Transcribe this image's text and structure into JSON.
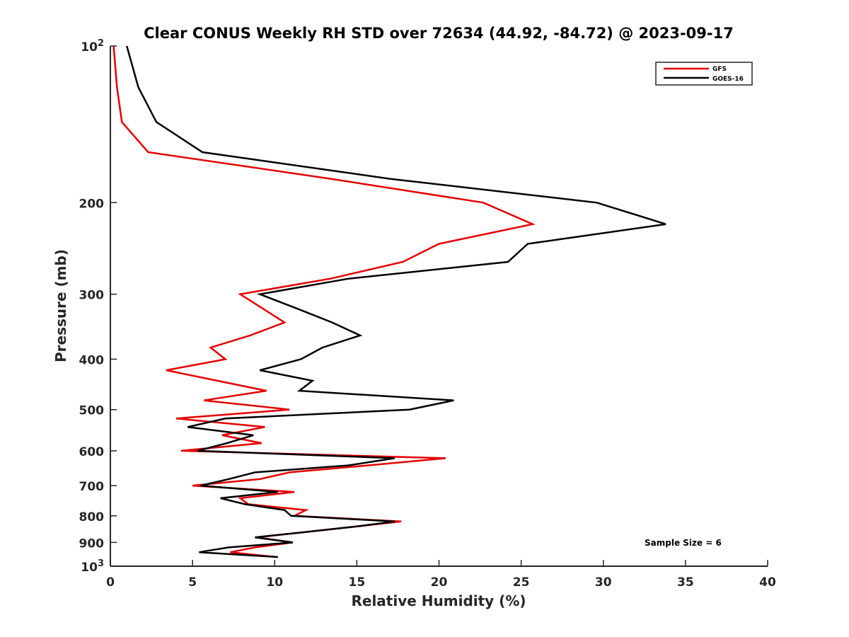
{
  "chart_data": {
    "type": "line",
    "title": "Clear CONUS Weekly RH STD over 72634 (44.92, -84.72) @ 2023-09-17",
    "xlabel": "Relative Humidity (%)",
    "ylabel": "Pressure (mb)",
    "xlim": [
      0,
      40
    ],
    "ylim": [
      100,
      1000
    ],
    "yscale": "log",
    "yreversed": true,
    "grid": false,
    "x_ticks": [
      0,
      5,
      10,
      15,
      20,
      25,
      30,
      35,
      40
    ],
    "x_tick_labels": [
      "0",
      "5",
      "10",
      "15",
      "20",
      "25",
      "30",
      "35",
      "40"
    ],
    "y_ticks": [
      100,
      200,
      300,
      400,
      500,
      600,
      700,
      800,
      900,
      1000
    ],
    "y_tick_labels": [
      {
        "base": "10",
        "exp": "2"
      },
      {
        "text": "200"
      },
      {
        "text": "300"
      },
      {
        "text": "400"
      },
      {
        "text": "500"
      },
      {
        "text": "600"
      },
      {
        "text": "700"
      },
      {
        "text": "800"
      },
      {
        "text": "900"
      },
      {
        "base": "10",
        "exp": "3"
      }
    ],
    "legend": {
      "placement": "top-right",
      "entries": [
        "GFS",
        "GOES-16"
      ]
    },
    "annotation": "Sample Size = 6",
    "pressure_levels": [
      100,
      120,
      140,
      160,
      180,
      200,
      220,
      240,
      260,
      280,
      300,
      320,
      340,
      360,
      380,
      400,
      420,
      440,
      460,
      480,
      500,
      520,
      540,
      560,
      580,
      600,
      620,
      640,
      660,
      680,
      700,
      720,
      740,
      760,
      780,
      800,
      820,
      840,
      860,
      880,
      900,
      920,
      940,
      960
    ],
    "series": [
      {
        "name": "GFS",
        "color": "#e50000",
        "values": [
          0.2,
          0.4,
          0.7,
          2.3,
          13.4,
          22.7,
          25.7,
          20.0,
          17.8,
          13.4,
          7.9,
          9.3,
          10.6,
          8.5,
          6.1,
          7.0,
          3.4,
          6.5,
          9.5,
          5.7,
          10.9,
          4.0,
          9.4,
          6.8,
          9.2,
          4.3,
          20.4,
          15.7,
          10.9,
          9.1,
          5.0,
          11.2,
          7.9,
          8.4,
          11.9,
          11.2,
          17.7,
          14.8,
          11.8,
          8.9,
          11.1,
          8.8,
          7.3,
          10.1
        ]
      },
      {
        "name": "GOES-16",
        "color": "#000000",
        "values": [
          1.0,
          1.7,
          2.8,
          5.6,
          17.0,
          29.6,
          33.8,
          25.4,
          24.2,
          14.5,
          9.1,
          11.4,
          13.5,
          15.2,
          12.9,
          11.6,
          9.1,
          12.3,
          11.5,
          20.9,
          18.2,
          7.0,
          4.7,
          8.7,
          7.1,
          5.3,
          17.3,
          14.5,
          8.8,
          7.2,
          5.5,
          10.2,
          6.7,
          8.2,
          10.6,
          11.0,
          17.3,
          14.8,
          11.8,
          8.8,
          11.1,
          7.2,
          5.4,
          10.2
        ]
      }
    ]
  }
}
